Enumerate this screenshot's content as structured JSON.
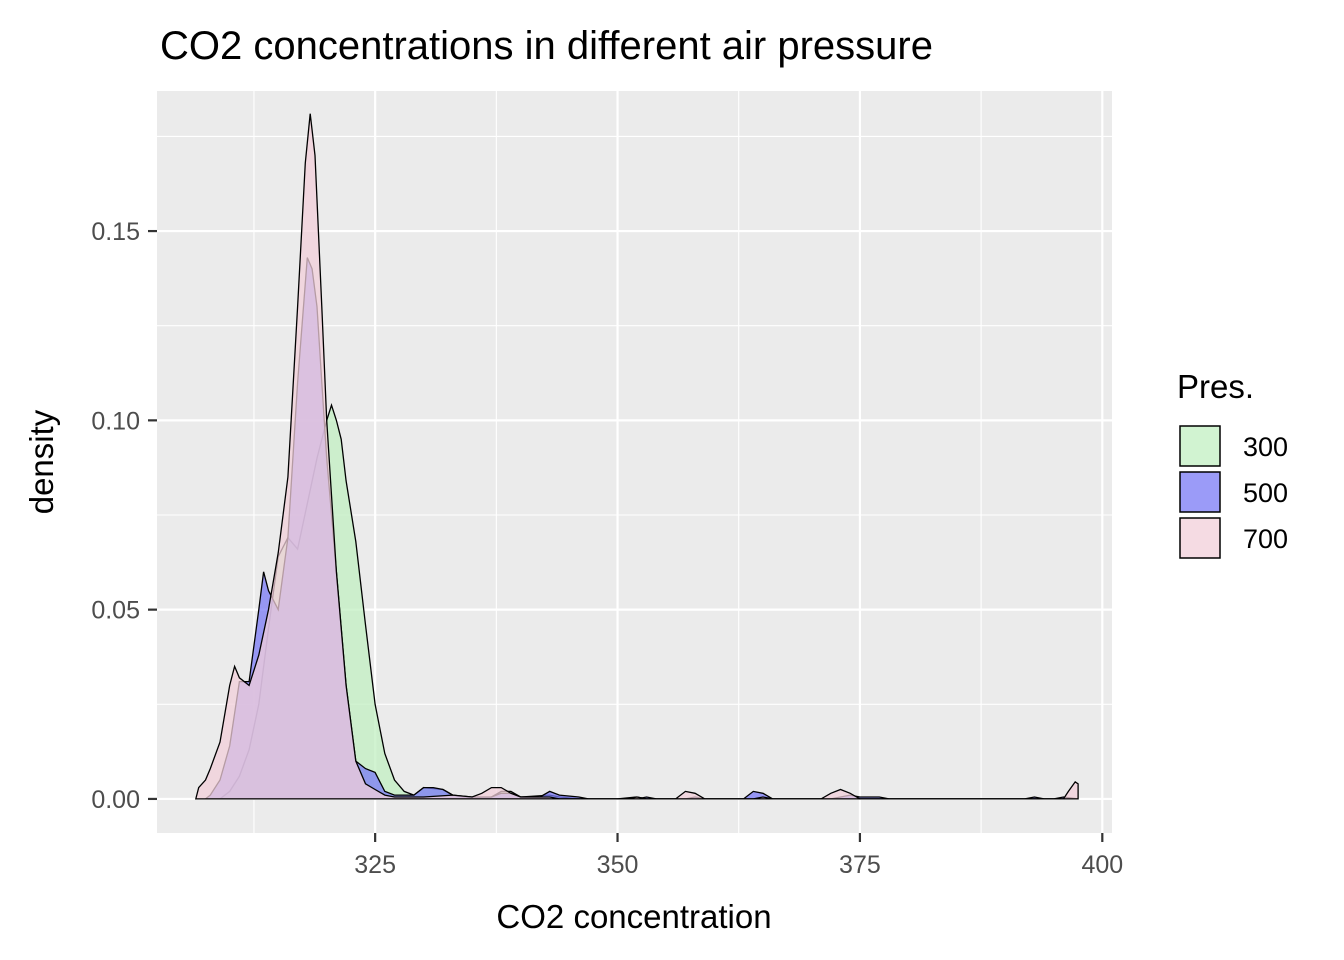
{
  "chart_data": {
    "type": "area",
    "title": "CO2 concentrations in different air pressure",
    "xlabel": "CO2 concentration",
    "ylabel": "density",
    "xlim": [
      302.5,
      401
    ],
    "ylim": [
      -0.009,
      0.187
    ],
    "x_ticks": [
      325,
      350,
      375,
      400
    ],
    "y_ticks": [
      0.0,
      0.05,
      0.1,
      0.15
    ],
    "y_tick_labels": [
      "0.00",
      "0.05",
      "0.10",
      "0.15"
    ],
    "grid": true,
    "legend": {
      "title": "Pres.",
      "position": "right",
      "entries": [
        "300",
        "500",
        "700"
      ]
    },
    "series": [
      {
        "name": "300",
        "color": "#c2efc2",
        "points": [
          [
            309,
            0
          ],
          [
            310,
            0.002
          ],
          [
            311,
            0.006
          ],
          [
            312,
            0.013
          ],
          [
            313,
            0.025
          ],
          [
            314,
            0.045
          ],
          [
            315,
            0.064
          ],
          [
            316,
            0.069
          ],
          [
            317,
            0.066
          ],
          [
            318,
            0.078
          ],
          [
            319,
            0.09
          ],
          [
            319.5,
            0.095
          ],
          [
            320,
            0.1
          ],
          [
            320.5,
            0.104
          ],
          [
            321,
            0.1
          ],
          [
            321.5,
            0.095
          ],
          [
            322,
            0.084
          ],
          [
            323,
            0.068
          ],
          [
            324,
            0.046
          ],
          [
            325,
            0.025
          ],
          [
            326,
            0.012
          ],
          [
            327,
            0.005
          ],
          [
            328,
            0.002
          ],
          [
            329,
            0.001
          ],
          [
            330,
            0.003
          ],
          [
            332,
            0.0025
          ],
          [
            333,
            0.001
          ],
          [
            334,
            0.0005
          ],
          [
            335,
            0.0
          ],
          [
            337,
            0.0005
          ],
          [
            338,
            0.002
          ],
          [
            339,
            0.002
          ],
          [
            340,
            0.0005
          ],
          [
            343,
            0.001
          ],
          [
            344,
            0.0005
          ],
          [
            346,
            0
          ],
          [
            350,
            0
          ],
          [
            352,
            0.0005
          ],
          [
            353,
            0
          ],
          [
            397.5,
            0
          ]
        ]
      },
      {
        "name": "500",
        "color": "#7a7af5",
        "points": [
          [
            307.5,
            0
          ],
          [
            308,
            0.001
          ],
          [
            309,
            0.005
          ],
          [
            310,
            0.014
          ],
          [
            311,
            0.031
          ],
          [
            312,
            0.031
          ],
          [
            313,
            0.05
          ],
          [
            313.5,
            0.06
          ],
          [
            314,
            0.055
          ],
          [
            315,
            0.05
          ],
          [
            316,
            0.069
          ],
          [
            317,
            0.11
          ],
          [
            318,
            0.143
          ],
          [
            318.5,
            0.14
          ],
          [
            319,
            0.13
          ],
          [
            319.5,
            0.11
          ],
          [
            320,
            0.09
          ],
          [
            321,
            0.06
          ],
          [
            322,
            0.03
          ],
          [
            323,
            0.01
          ],
          [
            324,
            0.008
          ],
          [
            325,
            0.007
          ],
          [
            326,
            0.002
          ],
          [
            327,
            0.001
          ],
          [
            329,
            0.001
          ],
          [
            330,
            0.003
          ],
          [
            331,
            0.003
          ],
          [
            332,
            0.0025
          ],
          [
            333,
            0.001
          ],
          [
            335,
            0.0005
          ],
          [
            337,
            0.0005
          ],
          [
            338,
            0.0015
          ],
          [
            339,
            0.0015
          ],
          [
            340,
            0.0005
          ],
          [
            342,
            0.0005
          ],
          [
            343,
            0.002
          ],
          [
            344,
            0.001
          ],
          [
            346,
            0.0005
          ],
          [
            347,
            0
          ],
          [
            352,
            0
          ],
          [
            353,
            0.0005
          ],
          [
            354,
            0
          ],
          [
            357,
            0
          ],
          [
            358,
            0.0005
          ],
          [
            359,
            0
          ],
          [
            363,
            0
          ],
          [
            364,
            0.002
          ],
          [
            365,
            0.0015
          ],
          [
            366,
            0
          ],
          [
            372,
            0
          ],
          [
            373,
            0.0005
          ],
          [
            374,
            0.001
          ],
          [
            375,
            0.0005
          ],
          [
            377,
            0.0005
          ],
          [
            378,
            0
          ],
          [
            392,
            0
          ],
          [
            393,
            0.0005
          ],
          [
            394,
            0
          ],
          [
            395,
            0
          ],
          [
            396,
            0.0005
          ],
          [
            397.5,
            0
          ]
        ]
      },
      {
        "name": "700",
        "color": "#f2cfd9",
        "points": [
          [
            306.5,
            0
          ],
          [
            306.8,
            0.003
          ],
          [
            307.5,
            0.005
          ],
          [
            308,
            0.008
          ],
          [
            309,
            0.015
          ],
          [
            310,
            0.03
          ],
          [
            310.5,
            0.035
          ],
          [
            311,
            0.032
          ],
          [
            312,
            0.03
          ],
          [
            313,
            0.038
          ],
          [
            314,
            0.05
          ],
          [
            315,
            0.065
          ],
          [
            316,
            0.085
          ],
          [
            317,
            0.13
          ],
          [
            317.8,
            0.168
          ],
          [
            318.3,
            0.181
          ],
          [
            318.8,
            0.17
          ],
          [
            319.5,
            0.13
          ],
          [
            320,
            0.1
          ],
          [
            321,
            0.06
          ],
          [
            322,
            0.03
          ],
          [
            323,
            0.01
          ],
          [
            324,
            0.004
          ],
          [
            325,
            0.0025
          ],
          [
            326,
            0.001
          ],
          [
            327,
            0.0005
          ],
          [
            330,
            0.0005
          ],
          [
            333,
            0.001
          ],
          [
            335,
            0.0005
          ],
          [
            336,
            0.0015
          ],
          [
            337,
            0.003
          ],
          [
            338,
            0.003
          ],
          [
            339,
            0.0015
          ],
          [
            340,
            0.0005
          ],
          [
            343,
            0.0005
          ],
          [
            344,
            0
          ],
          [
            351,
            0
          ],
          [
            352,
            0.0005
          ],
          [
            353,
            0
          ],
          [
            356,
            0
          ],
          [
            357,
            0.002
          ],
          [
            358,
            0.0015
          ],
          [
            359,
            0
          ],
          [
            364,
            0
          ],
          [
            365,
            0.0005
          ],
          [
            366,
            0
          ],
          [
            371,
            0
          ],
          [
            372,
            0.0015
          ],
          [
            373,
            0.0025
          ],
          [
            374,
            0.0015
          ],
          [
            375,
            0
          ],
          [
            396,
            0
          ],
          [
            396.5,
            0.002
          ],
          [
            397.2,
            0.0045
          ],
          [
            397.5,
            0.004
          ],
          [
            397.5,
            0
          ]
        ]
      }
    ]
  }
}
